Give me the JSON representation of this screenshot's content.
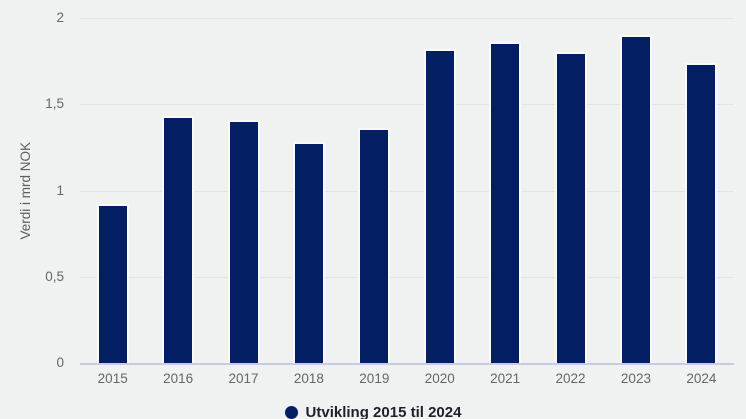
{
  "chart_data": {
    "type": "bar",
    "title": "",
    "categories": [
      "2015",
      "2016",
      "2017",
      "2018",
      "2019",
      "2020",
      "2021",
      "2022",
      "2023",
      "2024"
    ],
    "values": [
      0.92,
      1.43,
      1.41,
      1.28,
      1.36,
      1.82,
      1.86,
      1.8,
      1.9,
      1.74
    ],
    "xlabel": "",
    "ylabel": "Verdi i mrd NOK",
    "ylim": [
      0,
      2
    ],
    "yticks": [
      {
        "value": 0,
        "label": "0"
      },
      {
        "value": 0.5,
        "label": "0,5"
      },
      {
        "value": 1,
        "label": "1"
      },
      {
        "value": 1.5,
        "label": "1,5"
      },
      {
        "value": 2,
        "label": "2"
      }
    ],
    "grid": true,
    "legend_label": "Utvikling 2015 til 2024",
    "legend_position": "bottom-center",
    "colors": {
      "bar": "#041e63",
      "background": "#f0f1f1",
      "gridline": "#e3e4e4",
      "zero_line": "#c7cbe7",
      "axis_text": "#666666",
      "legend_text": "#1d2129"
    }
  }
}
